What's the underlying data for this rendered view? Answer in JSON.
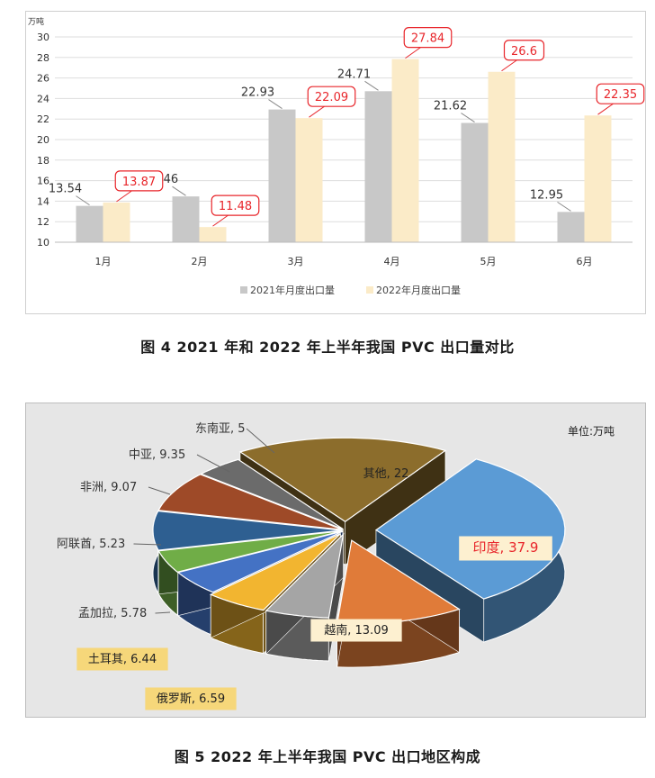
{
  "chart_data": [
    {
      "type": "bar",
      "y_unit": "万吨",
      "categories": [
        "1月",
        "2月",
        "3月",
        "4月",
        "5月",
        "6月"
      ],
      "series": [
        {
          "name": "2021年月度出口量",
          "values": [
            13.54,
            14.46,
            22.93,
            24.71,
            21.62,
            12.95
          ],
          "color": "#c8c8c8"
        },
        {
          "name": "2022年月度出口量",
          "values": [
            13.87,
            11.48,
            22.09,
            27.84,
            26.6,
            22.35
          ],
          "color": "#fbebc8"
        }
      ],
      "ylim": [
        10,
        30
      ],
      "yticks": [
        10,
        12,
        14,
        16,
        18,
        20,
        22,
        24,
        26,
        28,
        30
      ],
      "grid": true,
      "legend": "bottom",
      "highlight_label_color": "#e8262b",
      "caption": "图 4  2021 年和 2022 年上半年我国 PVC 出口量对比"
    },
    {
      "type": "pie",
      "unit_note": "单位:万吨",
      "slices": [
        {
          "label": "印度",
          "value": 37.9,
          "color": "#5b9bd5"
        },
        {
          "label": "越南",
          "value": 13.09,
          "color": "#e07b39"
        },
        {
          "label": "俄罗斯",
          "value": 6.59,
          "color": "#a5a5a5"
        },
        {
          "label": "土耳其",
          "value": 6.44,
          "color": "#f2b530"
        },
        {
          "label": "孟加拉",
          "value": 5.78,
          "color": "#4472c4"
        },
        {
          "label": "阿联酋",
          "value": 5.23,
          "color": "#70ad47"
        },
        {
          "label": "非洲",
          "value": 9.07,
          "color": "#2e5f91"
        },
        {
          "label": "中亚",
          "value": 9.35,
          "color": "#9e4a28"
        },
        {
          "label": "东南亚",
          "value": 5,
          "color": "#6b6b6b"
        },
        {
          "label": "其他",
          "value": 22,
          "color": "#8c6d2c"
        }
      ],
      "style": "3d-exploded",
      "caption": "图 5  2022 年上半年我国 PVC 出口地区构成"
    }
  ]
}
